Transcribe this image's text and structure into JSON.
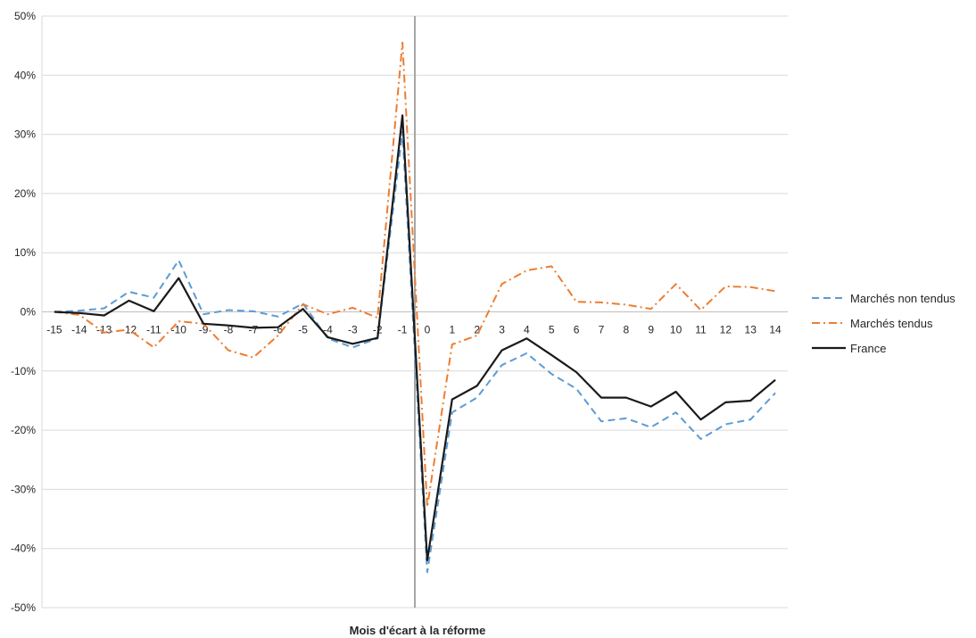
{
  "chart_data": {
    "type": "line",
    "title": "",
    "xlabel": "Mois d'écart à la réforme",
    "ylabel": "",
    "ylim": [
      -0.5,
      0.5
    ],
    "yticks": [
      -0.5,
      -0.4,
      -0.3,
      -0.2,
      -0.1,
      0,
      0.1,
      0.2,
      0.3,
      0.4,
      0.5
    ],
    "ytick_labels": [
      "-50%",
      "-40%",
      "-30%",
      "-20%",
      "-10%",
      "0%",
      "10%",
      "20%",
      "30%",
      "40%",
      "50%"
    ],
    "grid": true,
    "reform_marker_x": -0.5,
    "legend_position": "right",
    "x": [
      -15,
      -14,
      -13,
      -12,
      -11,
      -10,
      -9,
      -8,
      -7,
      -6,
      -5,
      -4,
      -3,
      -2,
      -1,
      0,
      1,
      2,
      3,
      4,
      5,
      6,
      7,
      8,
      9,
      10,
      11,
      12,
      13,
      14
    ],
    "x_labels": [
      "-15",
      "-14",
      "-13",
      "-12",
      "-11",
      "-10",
      "-9",
      "-8",
      "-7",
      "-6",
      "-5",
      "-4",
      "-3",
      "-2",
      "-1",
      "0",
      "1",
      "2",
      "3",
      "4",
      "5",
      "6",
      "7",
      "8",
      "9",
      "10",
      "11",
      "12",
      "13",
      "14"
    ],
    "series": [
      {
        "name": "Marchés non tendus",
        "color": "#5b9bd5",
        "dash": "dashed",
        "values": [
          0.0,
          0.002,
          0.006,
          0.034,
          0.024,
          0.087,
          -0.004,
          0.003,
          0.001,
          -0.008,
          0.014,
          -0.045,
          -0.06,
          -0.045,
          0.305,
          -0.44,
          -0.17,
          -0.145,
          -0.09,
          -0.07,
          -0.105,
          -0.13,
          -0.185,
          -0.18,
          -0.195,
          -0.17,
          -0.215,
          -0.19,
          -0.182,
          -0.137
        ]
      },
      {
        "name": "Marchés tendus",
        "color": "#ed7d31",
        "dash": "dashdot",
        "values": [
          0.0,
          -0.005,
          -0.035,
          -0.03,
          -0.06,
          -0.016,
          -0.02,
          -0.065,
          -0.077,
          -0.04,
          0.013,
          -0.004,
          0.007,
          -0.01,
          0.455,
          -0.33,
          -0.055,
          -0.04,
          0.047,
          0.07,
          0.077,
          0.017,
          0.016,
          0.012,
          0.005,
          0.047,
          0.003,
          0.043,
          0.042,
          0.035
        ]
      },
      {
        "name": "France",
        "color": "#1a1a1a",
        "dash": "solid",
        "values": [
          0.0,
          -0.002,
          -0.006,
          0.019,
          0.001,
          0.057,
          -0.02,
          -0.023,
          -0.027,
          -0.026,
          0.005,
          -0.043,
          -0.054,
          -0.044,
          0.332,
          -0.42,
          -0.148,
          -0.125,
          -0.065,
          -0.045,
          -0.073,
          -0.102,
          -0.145,
          -0.145,
          -0.16,
          -0.135,
          -0.182,
          -0.153,
          -0.15,
          -0.115
        ]
      }
    ]
  }
}
